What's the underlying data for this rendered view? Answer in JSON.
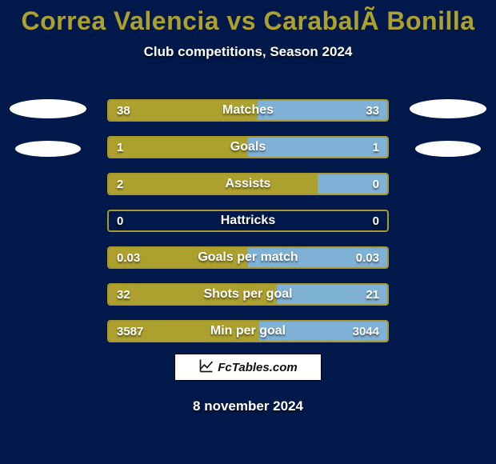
{
  "colors": {
    "background": "#01194a",
    "title": "#aca02f",
    "bar_border": "#a7992f",
    "bar_fill_left": "#aca02f",
    "bar_fill_right": "#7fb1d6",
    "text_shadow": "rgba(0,0,0,0.55)",
    "pill": "#ffffff"
  },
  "title": "Correa Valencia vs CarabalÃ Bonilla",
  "subtitle": "Club competitions, Season 2024",
  "date": "8 november 2024",
  "badge": {
    "text": "FcTables.com"
  },
  "bars": [
    {
      "label": "Matches",
      "left": "38",
      "right": "33",
      "left_pct": 53.5,
      "right_pct": 46.5
    },
    {
      "label": "Goals",
      "left": "1",
      "right": "1",
      "left_pct": 50.0,
      "right_pct": 50.0
    },
    {
      "label": "Assists",
      "left": "2",
      "right": "0",
      "left_pct": 75.0,
      "right_pct": 25.0
    },
    {
      "label": "Hattricks",
      "left": "0",
      "right": "0",
      "left_pct": 0.0,
      "right_pct": 0.0
    },
    {
      "label": "Goals per match",
      "left": "0.03",
      "right": "0.03",
      "left_pct": 50.0,
      "right_pct": 50.0
    },
    {
      "label": "Shots per goal",
      "left": "32",
      "right": "21",
      "left_pct": 60.4,
      "right_pct": 39.6
    },
    {
      "label": "Min per goal",
      "left": "3587",
      "right": "3044",
      "left_pct": 54.1,
      "right_pct": 45.9
    }
  ],
  "pills": {
    "left": [
      {
        "size": "big"
      },
      {
        "size": "small"
      }
    ],
    "right": [
      {
        "size": "big"
      },
      {
        "size": "small"
      }
    ]
  }
}
